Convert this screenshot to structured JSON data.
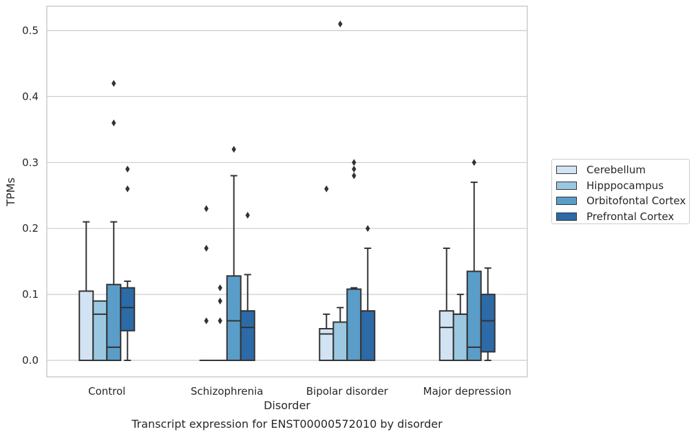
{
  "chart_data": {
    "type": "box",
    "title": "Transcript expression for ENST00000572010 by disorder",
    "xlabel": "Disorder",
    "ylabel": "TPMs",
    "ylim": [
      -0.025,
      0.537
    ],
    "yticks": [
      0.0,
      0.1,
      0.2,
      0.3,
      0.4,
      0.5
    ],
    "ytick_labels": [
      "0.0",
      "0.1",
      "0.2",
      "0.3",
      "0.4",
      "0.5"
    ],
    "grid": "horizontal",
    "legend_position": "right",
    "categories": [
      "Control",
      "Schizophrenia",
      "Bipolar disorder",
      "Major depression"
    ],
    "series": [
      {
        "name": "Cerebellum",
        "color": "#d2e3f3",
        "boxes": [
          {
            "low": 0.0,
            "q1": 0.0,
            "median": 0.0,
            "q3": 0.105,
            "high": 0.21,
            "outliers": []
          },
          {
            "low": 0.0,
            "q1": 0.0,
            "median": 0.0,
            "q3": 0.0,
            "high": 0.0,
            "outliers": [
              0.06,
              0.17,
              0.23
            ]
          },
          {
            "low": 0.0,
            "q1": 0.0,
            "median": 0.04,
            "q3": 0.048,
            "high": 0.07,
            "outliers": [
              0.26
            ]
          },
          {
            "low": 0.0,
            "q1": 0.0,
            "median": 0.05,
            "q3": 0.075,
            "high": 0.17,
            "outliers": []
          }
        ]
      },
      {
        "name": "Hipppocampus",
        "color": "#9ac8e0",
        "boxes": [
          {
            "low": 0.0,
            "q1": 0.0,
            "median": 0.07,
            "q3": 0.09,
            "high": 0.09,
            "outliers": []
          },
          {
            "low": 0.0,
            "q1": 0.0,
            "median": 0.0,
            "q3": 0.0,
            "high": 0.0,
            "outliers": [
              0.06,
              0.09,
              0.11
            ]
          },
          {
            "low": 0.0,
            "q1": 0.0,
            "median": 0.0,
            "q3": 0.058,
            "high": 0.08,
            "outliers": [
              0.51
            ]
          },
          {
            "low": 0.0,
            "q1": 0.0,
            "median": 0.07,
            "q3": 0.07,
            "high": 0.1,
            "outliers": []
          }
        ]
      },
      {
        "name": "Orbitofontal Cortex",
        "color": "#5a9dc8",
        "boxes": [
          {
            "low": 0.0,
            "q1": 0.0,
            "median": 0.02,
            "q3": 0.115,
            "high": 0.21,
            "outliers": [
              0.36,
              0.42
            ]
          },
          {
            "low": 0.0,
            "q1": 0.0,
            "median": 0.06,
            "q3": 0.128,
            "high": 0.28,
            "outliers": [
              0.32
            ]
          },
          {
            "low": 0.0,
            "q1": 0.0,
            "median": 0.0,
            "q3": 0.108,
            "high": 0.11,
            "outliers": [
              0.28,
              0.29,
              0.3
            ]
          },
          {
            "low": 0.0,
            "q1": 0.0,
            "median": 0.02,
            "q3": 0.135,
            "high": 0.27,
            "outliers": [
              0.3
            ]
          }
        ]
      },
      {
        "name": "Prefrontal Cortex",
        "color": "#2c6aa8",
        "boxes": [
          {
            "low": 0.0,
            "q1": 0.045,
            "median": 0.08,
            "q3": 0.11,
            "high": 0.12,
            "outliers": [
              0.26,
              0.29
            ]
          },
          {
            "low": 0.0,
            "q1": 0.0,
            "median": 0.05,
            "q3": 0.075,
            "high": 0.13,
            "outliers": [
              0.22
            ]
          },
          {
            "low": 0.0,
            "q1": 0.0,
            "median": 0.0,
            "q3": 0.075,
            "high": 0.17,
            "outliers": [
              0.2
            ]
          },
          {
            "low": 0.0,
            "q1": 0.013,
            "median": 0.06,
            "q3": 0.1,
            "high": 0.14,
            "outliers": []
          }
        ]
      }
    ]
  }
}
